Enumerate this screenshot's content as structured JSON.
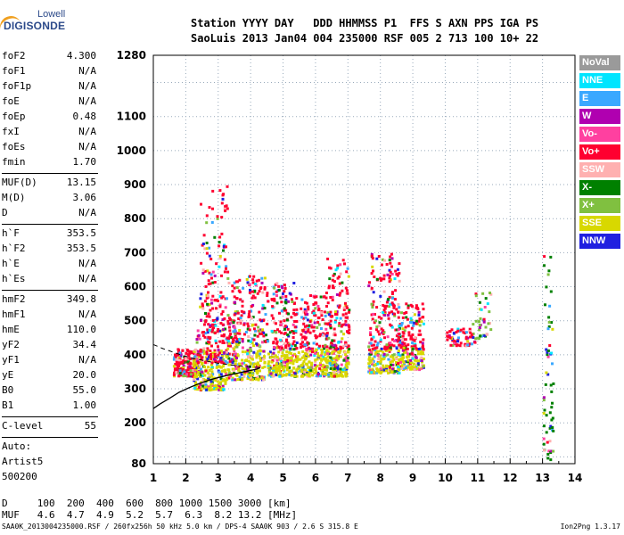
{
  "logo": {
    "line1": "Lowell",
    "line2": "DIGISONDE"
  },
  "header": {
    "line1": "Station YYYY DAY   DDD HHMMSS P1  FFS S AXN PPS IGA PS",
    "line2": "SaoLuis 2013 Jan04 004 235000 RSF 005 2 713 100 10+ 22"
  },
  "params_group1": [
    {
      "key": "foF2",
      "value": "4.300"
    },
    {
      "key": "foF1",
      "value": "N/A"
    },
    {
      "key": "foF1p",
      "value": "N/A"
    },
    {
      "key": "foE",
      "value": "N/A"
    },
    {
      "key": "foEp",
      "value": "0.48"
    },
    {
      "key": "fxI",
      "value": "N/A"
    },
    {
      "key": "foEs",
      "value": "N/A"
    },
    {
      "key": "fmin",
      "value": "1.70"
    }
  ],
  "params_group2": [
    {
      "key": "MUF(D)",
      "value": "13.15"
    },
    {
      "key": "M(D)",
      "value": "3.06"
    },
    {
      "key": "D",
      "value": "N/A"
    }
  ],
  "params_group3": [
    {
      "key": "h`F",
      "value": "353.5"
    },
    {
      "key": "h`F2",
      "value": "353.5"
    },
    {
      "key": "h`E",
      "value": "N/A"
    },
    {
      "key": "h`Es",
      "value": "N/A"
    }
  ],
  "params_group4": [
    {
      "key": "hmF2",
      "value": "349.8"
    },
    {
      "key": "hmF1",
      "value": "N/A"
    },
    {
      "key": "hmE",
      "value": "110.0"
    },
    {
      "key": "yF2",
      "value": "34.4"
    },
    {
      "key": "yF1",
      "value": "N/A"
    },
    {
      "key": "yE",
      "value": "20.0"
    },
    {
      "key": "B0",
      "value": "55.0"
    },
    {
      "key": "B1",
      "value": "1.00"
    }
  ],
  "clevel": {
    "key": "C-level",
    "value": "55"
  },
  "autoscale": {
    "line1": "Auto:",
    "line2": "Artist5",
    "line3": "500200"
  },
  "legend": [
    {
      "label": "NoVal",
      "color": "#9a9a9a"
    },
    {
      "label": "NNE",
      "color": "#00e5ff"
    },
    {
      "label": "E",
      "color": "#3aa8ff"
    },
    {
      "label": "W",
      "color": "#b000b0"
    },
    {
      "label": "Vo-",
      "color": "#ff40a0"
    },
    {
      "label": "Vo+",
      "color": "#ff0030"
    },
    {
      "label": "SSW",
      "color": "#ffb0b0"
    },
    {
      "label": "X-",
      "color": "#008000"
    },
    {
      "label": "X+",
      "color": "#80c040"
    },
    {
      "label": "SSE",
      "color": "#d8d800"
    },
    {
      "label": "NNW",
      "color": "#2020e0"
    }
  ],
  "chart_data": {
    "type": "scatter",
    "title": "",
    "xlabel": "",
    "ylabel": "",
    "xlim": [
      1,
      14
    ],
    "ylim": [
      80,
      1280
    ],
    "xticks": [
      1,
      2,
      3,
      4,
      5,
      6,
      7,
      8,
      9,
      10,
      11,
      12,
      13,
      14
    ],
    "yticks": [
      80,
      200,
      300,
      400,
      500,
      600,
      700,
      800,
      900,
      1000,
      1100,
      1280
    ],
    "grid": true,
    "trace_x": [
      1.0,
      1.2,
      1.5,
      1.8,
      2.1,
      2.4,
      2.7,
      3.0,
      3.3,
      3.6,
      3.9,
      4.2,
      4.3
    ],
    "trace_y": [
      242,
      255,
      272,
      290,
      303,
      315,
      325,
      333,
      340,
      346,
      352,
      358,
      362
    ],
    "dashed_x": [
      1.0,
      1.3,
      1.6,
      1.9,
      2.2,
      2.6,
      3.0,
      3.4,
      3.8,
      4.2,
      4.3
    ],
    "dashed_y": [
      430,
      418,
      408,
      398,
      390,
      382,
      375,
      370,
      366,
      363,
      362
    ],
    "clusters": [
      {
        "x": [
          1.6,
          2.3
        ],
        "y": [
          340,
          420
        ],
        "n": 180,
        "dominant": "Vo+"
      },
      {
        "x": [
          2.2,
          3.2
        ],
        "y": [
          300,
          420
        ],
        "n": 220,
        "dominant": "SSE"
      },
      {
        "x": [
          2.3,
          3.5
        ],
        "y": [
          380,
          560
        ],
        "n": 200,
        "dominant": "Vo+"
      },
      {
        "x": [
          2.4,
          3.3
        ],
        "y": [
          560,
          900
        ],
        "n": 90,
        "dominant": "Vo+"
      },
      {
        "x": [
          3.2,
          4.4
        ],
        "y": [
          330,
          440
        ],
        "n": 200,
        "dominant": "SSE"
      },
      {
        "x": [
          3.4,
          4.5
        ],
        "y": [
          440,
          640
        ],
        "n": 150,
        "dominant": "Vo+"
      },
      {
        "x": [
          4.5,
          5.4
        ],
        "y": [
          340,
          420
        ],
        "n": 160,
        "dominant": "SSE"
      },
      {
        "x": [
          4.6,
          5.4
        ],
        "y": [
          420,
          620
        ],
        "n": 130,
        "dominant": "Vo+"
      },
      {
        "x": [
          5.4,
          6.3
        ],
        "y": [
          340,
          420
        ],
        "n": 150,
        "dominant": "SSE"
      },
      {
        "x": [
          5.5,
          6.3
        ],
        "y": [
          420,
          580
        ],
        "n": 120,
        "dominant": "Vo+"
      },
      {
        "x": [
          6.3,
          7.0
        ],
        "y": [
          340,
          420
        ],
        "n": 130,
        "dominant": "SSE"
      },
      {
        "x": [
          6.3,
          7.0
        ],
        "y": [
          420,
          690
        ],
        "n": 140,
        "dominant": "Vo+"
      },
      {
        "x": [
          7.6,
          8.6
        ],
        "y": [
          350,
          420
        ],
        "n": 150,
        "dominant": "SSE"
      },
      {
        "x": [
          7.6,
          8.6
        ],
        "y": [
          420,
          700
        ],
        "n": 170,
        "dominant": "Vo+"
      },
      {
        "x": [
          8.5,
          9.3
        ],
        "y": [
          360,
          420
        ],
        "n": 120,
        "dominant": "SSE"
      },
      {
        "x": [
          8.5,
          9.3
        ],
        "y": [
          420,
          560
        ],
        "n": 110,
        "dominant": "Vo+"
      },
      {
        "x": [
          10.0,
          10.9
        ],
        "y": [
          430,
          480
        ],
        "n": 60,
        "dominant": "Vo+"
      },
      {
        "x": [
          10.8,
          11.4
        ],
        "y": [
          450,
          590
        ],
        "n": 40,
        "dominant": "X+"
      },
      {
        "x": [
          13.0,
          13.3
        ],
        "y": [
          90,
          700
        ],
        "n": 60,
        "dominant": "X-"
      }
    ]
  },
  "bottom": {
    "line1": "D     100  200  400  600  800 1000 1500 3000 [km]",
    "line2": "MUF   4.6  4.7  4.9  5.2  5.7  6.3  8.2 13.2 [MHz]"
  },
  "footer": {
    "left": "SAA0K_2013004235000.RSF / 260fx256h 50 kHz 5.0 km / DPS-4 SAA0K 903 / 2.6 S 315.8 E",
    "right": "Ion2Png 1.3.17"
  }
}
